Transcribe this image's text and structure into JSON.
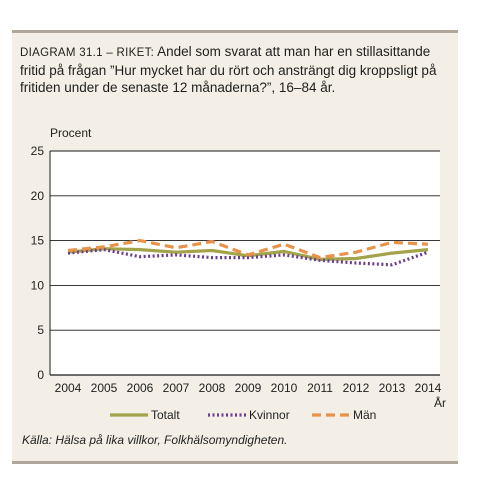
{
  "title_label": "DIAGRAM 31.1 – RIKET:",
  "title_text": " Andel som svarat att man har en stillasittande fritid på frågan ”Hur mycket har du rört och ansträngt dig kroppsligt på fritiden under de senaste 12 månaderna?”, 16–84 år.",
  "source": "Källa: Hälsa på lika villkor, Folkhälsomyndigheten.",
  "chart_data": {
    "type": "line",
    "ylabel": "Procent",
    "xlabel": "År",
    "ylim": [
      0,
      25
    ],
    "yticks": [
      0,
      5,
      10,
      15,
      20,
      25
    ],
    "grid": true,
    "legend_placement": "bottom",
    "x": [
      "2004",
      "2005",
      "2006",
      "2007",
      "2008",
      "2009",
      "2010",
      "2011",
      "2012",
      "2013",
      "2014"
    ],
    "series": [
      {
        "name": "Totalt",
        "color": "#a3a34a",
        "style": "solid",
        "values": [
          13.7,
          14.1,
          14.0,
          13.7,
          13.9,
          13.3,
          13.8,
          12.9,
          13.0,
          13.6,
          14.0
        ]
      },
      {
        "name": "Kvinnor",
        "color": "#6b3d8f",
        "style": "dotted",
        "values": [
          13.6,
          14.0,
          13.2,
          13.4,
          13.1,
          13.1,
          13.4,
          12.8,
          12.5,
          12.3,
          13.7
        ]
      },
      {
        "name": "Män",
        "color": "#e8924a",
        "style": "dashed",
        "values": [
          13.9,
          14.3,
          15.0,
          14.2,
          14.9,
          13.4,
          14.6,
          13.1,
          13.7,
          14.8,
          14.6
        ]
      }
    ]
  }
}
